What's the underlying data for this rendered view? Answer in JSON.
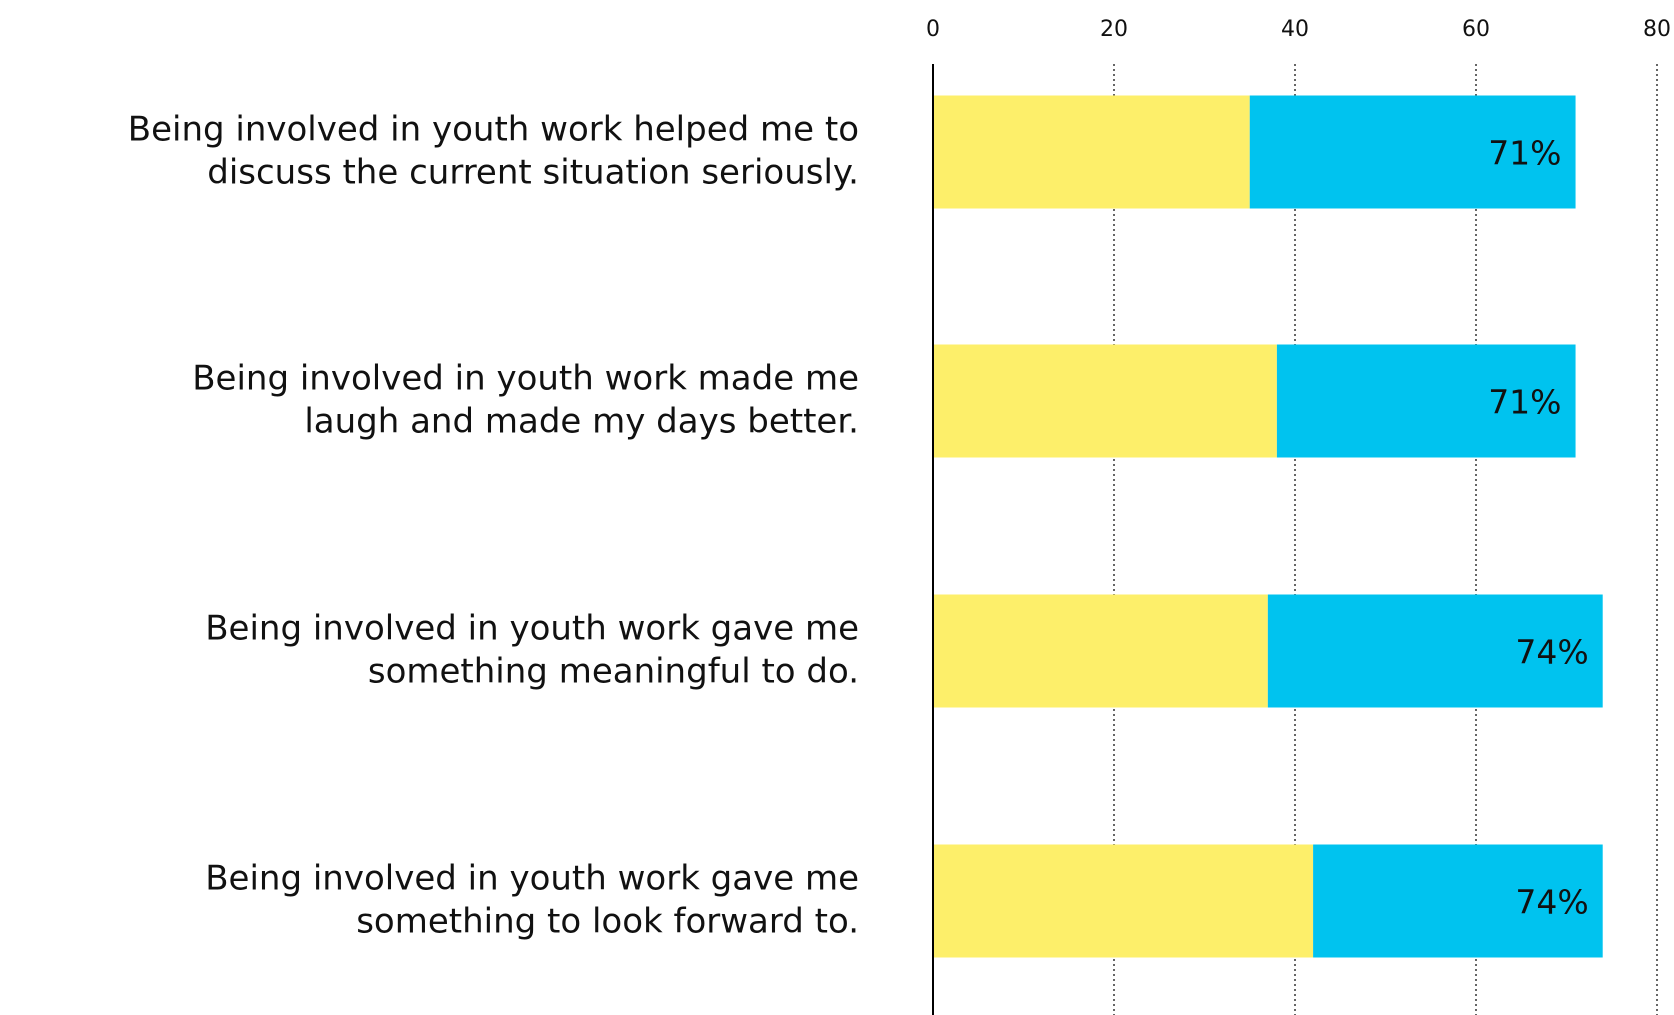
{
  "chart_data": {
    "type": "stacked_barh",
    "categories": [
      [
        "Being involved in youth work helped me to",
        "discuss the current situation seriously."
      ],
      [
        "Being involved in youth work made me",
        "laugh and made my days better."
      ],
      [
        "Being involved in youth work gave me",
        "something meaningful to do."
      ],
      [
        "Being involved in youth work gave me",
        "something to look forward to."
      ]
    ],
    "series": [
      {
        "color": "#fdef6a",
        "values": [
          35,
          38,
          37,
          42
        ]
      },
      {
        "color": "#00c3ef",
        "values": [
          36,
          33,
          37,
          32
        ]
      }
    ],
    "totals": [
      71,
      71,
      74,
      74
    ],
    "total_labels": [
      "71%",
      "71%",
      "74%",
      "74%"
    ],
    "xlim": [
      0,
      80
    ],
    "xticks": [
      0,
      20,
      40,
      60,
      80
    ],
    "grid": true
  }
}
